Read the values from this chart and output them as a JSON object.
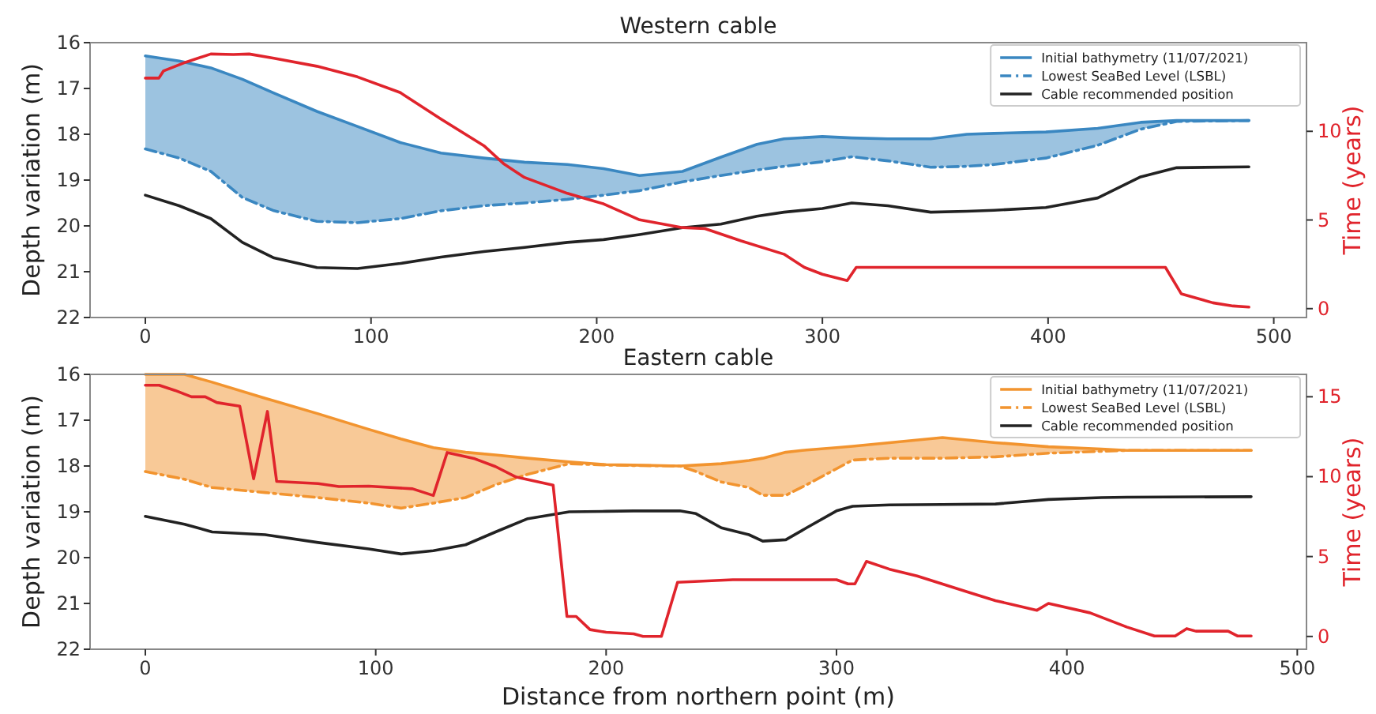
{
  "chart_data": [
    {
      "type": "line",
      "title": "Western cable",
      "ylabel": "Depth variation (m)",
      "y2label": "Time (years)",
      "xlim": [
        -24.5,
        514.5
      ],
      "xticks": [
        0,
        100,
        200,
        300,
        400,
        500
      ],
      "ylim": [
        22,
        16
      ],
      "yticks": [
        16,
        17,
        18,
        19,
        20,
        21,
        22
      ],
      "y2lim": [
        -0.5,
        15
      ],
      "y2ticks": [
        0,
        5,
        10
      ],
      "legend": "top right",
      "x": [
        0,
        15,
        29,
        43,
        57,
        76,
        94,
        113,
        131,
        150,
        168,
        187,
        203,
        219,
        238,
        255,
        271,
        283,
        300,
        313,
        329,
        348,
        364,
        376,
        399,
        422,
        441,
        457,
        489
      ],
      "series": [
        {
          "name": "Initial bathymetry (11/07/2021)",
          "color": "#3a87c1",
          "values": [
            16.29,
            16.4,
            16.55,
            16.8,
            17.1,
            17.5,
            17.83,
            18.18,
            18.41,
            18.52,
            18.61,
            18.66,
            18.75,
            18.9,
            18.81,
            18.5,
            18.22,
            18.1,
            18.05,
            18.08,
            18.1,
            18.1,
            18.0,
            17.98,
            17.95,
            17.87,
            17.74,
            17.7,
            17.7
          ],
          "upper": [
            16.29,
            16.4,
            16.55,
            16.8,
            17.1,
            17.5,
            17.83,
            18.18,
            18.41,
            18.52,
            18.61,
            18.66,
            18.75,
            18.9,
            18.81,
            18.5,
            18.22,
            18.1,
            18.05,
            18.08,
            18.1,
            18.1,
            18.0,
            17.98,
            17.95,
            17.87,
            17.74,
            17.7,
            17.7
          ],
          "lower": [
            18.32,
            18.52,
            18.81,
            19.38,
            19.67,
            19.9,
            19.93,
            19.84,
            19.67,
            19.56,
            19.5,
            19.42,
            19.33,
            19.23,
            19.04,
            18.9,
            18.78,
            18.7,
            18.6,
            18.49,
            18.58,
            18.72,
            18.7,
            18.66,
            18.52,
            18.24,
            17.89,
            17.72,
            17.7
          ]
        },
        {
          "name": "Lowest SeaBed Level (LSBL)",
          "color": "#3a87c1",
          "line_style": "dashed",
          "values": [
            18.32,
            18.52,
            18.81,
            19.38,
            19.67,
            19.9,
            19.93,
            19.84,
            19.67,
            19.56,
            19.5,
            19.42,
            19.33,
            19.23,
            19.04,
            18.9,
            18.78,
            18.7,
            18.6,
            18.49,
            18.58,
            18.72,
            18.7,
            18.66,
            18.52,
            18.24,
            17.89,
            17.72,
            17.7
          ]
        },
        {
          "name": "Cable recommended position",
          "color": "#222222",
          "values": [
            19.33,
            19.56,
            19.84,
            20.36,
            20.7,
            20.91,
            20.93,
            20.82,
            20.68,
            20.56,
            20.47,
            20.36,
            20.3,
            20.19,
            20.04,
            19.96,
            19.79,
            19.7,
            19.62,
            19.5,
            19.56,
            19.7,
            19.68,
            19.66,
            19.6,
            19.39,
            18.93,
            18.73,
            18.71
          ]
        },
        {
          "color": "#e0242c",
          "axis": "y2",
          "x": [
            0,
            6,
            8,
            18,
            29,
            39,
            46,
            57,
            76,
            94,
            113,
            131,
            150,
            159,
            168,
            187,
            203,
            219,
            238,
            248,
            264,
            283,
            292,
            300,
            311,
            315,
            329,
            452,
            459,
            473,
            482,
            489
          ],
          "values": [
            13.0,
            13.0,
            13.4,
            13.9,
            14.36,
            14.33,
            14.36,
            14.12,
            13.67,
            13.07,
            12.18,
            10.69,
            9.19,
            8.15,
            7.4,
            6.5,
            5.91,
            5.01,
            4.57,
            4.51,
            3.82,
            3.07,
            2.33,
            1.94,
            1.58,
            2.33,
            2.33,
            2.33,
            0.84,
            0.33,
            0.15,
            0.09
          ]
        }
      ]
    },
    {
      "type": "line",
      "title": "Eastern cable",
      "xlabel": "Distance from northern point (m)",
      "ylabel": "Depth variation (m)",
      "y2label": "Time (years)",
      "xlim": [
        -24,
        504
      ],
      "xticks": [
        0,
        100,
        200,
        300,
        400,
        500
      ],
      "ylim": [
        22,
        16
      ],
      "yticks": [
        16,
        17,
        18,
        19,
        20,
        21,
        22
      ],
      "y2lim": [
        -0.8,
        16.4
      ],
      "y2ticks": [
        0,
        5,
        10,
        15
      ],
      "legend": "top right",
      "x": [
        0,
        17,
        29,
        52,
        75,
        97,
        111,
        125,
        139,
        152,
        166,
        184,
        200,
        212,
        232,
        239,
        250,
        262,
        268,
        278,
        287,
        300,
        307,
        323,
        346,
        369,
        392,
        415,
        426,
        480
      ],
      "series": [
        {
          "name": "Initial bathymetry (11/07/2021)",
          "color": "#f2942f",
          "values": [
            16.0,
            16.0,
            16.17,
            16.52,
            16.86,
            17.2,
            17.41,
            17.6,
            17.7,
            17.76,
            17.83,
            17.91,
            17.97,
            17.98,
            18.0,
            17.98,
            17.95,
            17.88,
            17.83,
            17.7,
            17.65,
            17.6,
            17.57,
            17.49,
            17.38,
            17.49,
            17.58,
            17.63,
            17.66,
            17.66
          ],
          "upper": [
            16.0,
            16.0,
            16.17,
            16.52,
            16.86,
            17.2,
            17.41,
            17.6,
            17.7,
            17.76,
            17.83,
            17.91,
            17.97,
            17.98,
            18.0,
            17.98,
            17.95,
            17.88,
            17.83,
            17.7,
            17.65,
            17.6,
            17.57,
            17.49,
            17.38,
            17.49,
            17.58,
            17.63,
            17.66,
            17.66
          ],
          "lower": [
            18.12,
            18.29,
            18.47,
            18.58,
            18.69,
            18.81,
            18.92,
            18.81,
            18.69,
            18.41,
            18.18,
            17.95,
            17.98,
            17.99,
            18.0,
            18.12,
            18.35,
            18.47,
            18.64,
            18.64,
            18.41,
            18.06,
            17.87,
            17.83,
            17.83,
            17.8,
            17.72,
            17.68,
            17.66,
            17.66
          ]
        },
        {
          "name": "Lowest SeaBed Level (LSBL)",
          "color": "#f2942f",
          "line_style": "dashed",
          "values": [
            18.12,
            18.29,
            18.47,
            18.58,
            18.69,
            18.81,
            18.92,
            18.81,
            18.69,
            18.41,
            18.18,
            17.95,
            17.98,
            17.99,
            18.0,
            18.12,
            18.35,
            18.47,
            18.64,
            18.64,
            18.41,
            18.06,
            17.87,
            17.83,
            17.83,
            17.8,
            17.72,
            17.68,
            17.66,
            17.66
          ]
        },
        {
          "name": "Cable recommended position",
          "color": "#222222",
          "values": [
            19.1,
            19.27,
            19.44,
            19.5,
            19.67,
            19.81,
            19.92,
            19.85,
            19.72,
            19.44,
            19.15,
            19.0,
            18.99,
            18.98,
            18.98,
            19.04,
            19.35,
            19.5,
            19.64,
            19.61,
            19.35,
            18.98,
            18.88,
            18.85,
            18.84,
            18.83,
            18.73,
            18.69,
            18.68,
            18.67
          ]
        },
        {
          "color": "#e0242c",
          "axis": "y2",
          "x": [
            0,
            6,
            13,
            20,
            26,
            31,
            41,
            47,
            53,
            57,
            75,
            84,
            97,
            116,
            125,
            131,
            143,
            152,
            161,
            177,
            183,
            187,
            193,
            200,
            212,
            216,
            224,
            231,
            255,
            300,
            305,
            308,
            313,
            323,
            335,
            358,
            369,
            387,
            392,
            410,
            426,
            438,
            447,
            452,
            456,
            470,
            474,
            480
          ],
          "values": [
            15.72,
            15.72,
            15.39,
            15.0,
            15.0,
            14.64,
            14.41,
            9.87,
            14.08,
            9.7,
            9.57,
            9.38,
            9.41,
            9.24,
            8.82,
            11.51,
            11.12,
            10.63,
            9.97,
            9.47,
            1.25,
            1.25,
            0.43,
            0.26,
            0.16,
            0.0,
            0.0,
            3.39,
            3.55,
            3.55,
            3.29,
            3.29,
            4.7,
            4.21,
            3.78,
            2.73,
            2.24,
            1.64,
            2.07,
            1.48,
            0.59,
            0.03,
            0.03,
            0.49,
            0.33,
            0.33,
            0.03,
            0.03
          ]
        }
      ]
    }
  ]
}
